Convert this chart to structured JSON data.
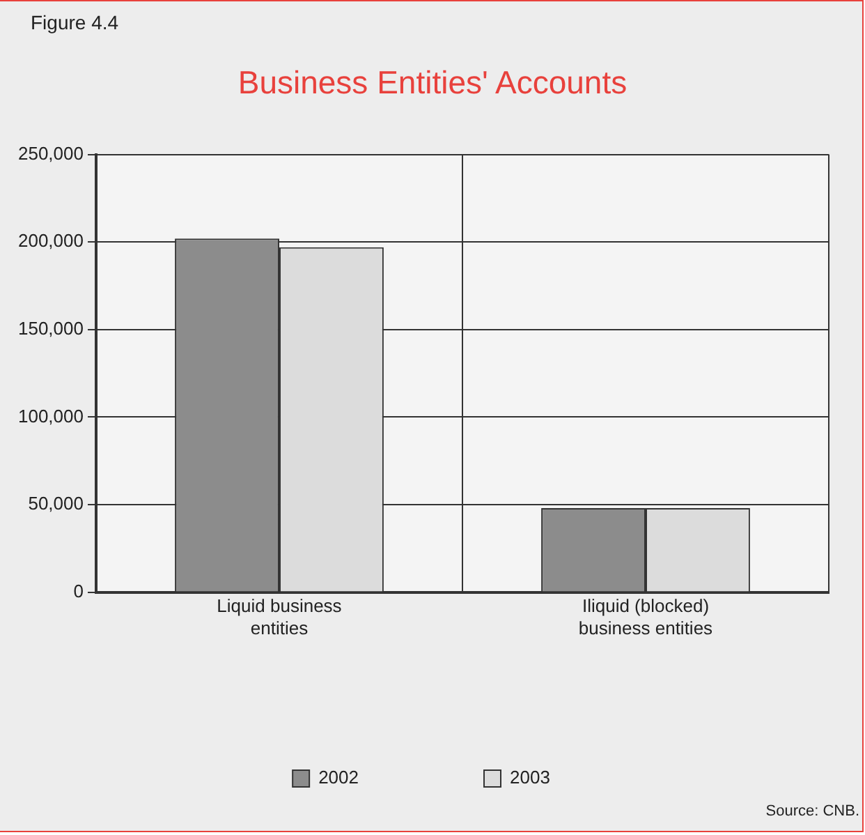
{
  "chart_data": {
    "type": "bar",
    "title": "Business Entities' Accounts",
    "annotations": [
      "Figure 4.4",
      "Source: CNB."
    ],
    "categories": [
      "Liquid business entities",
      "Iliquid (blocked) business entities"
    ],
    "series": [
      {
        "name": "2002",
        "color": "#8c8c8c",
        "values": [
          202000,
          48000
        ]
      },
      {
        "name": "2003",
        "color": "#dcdcdc",
        "values": [
          197000,
          48000
        ]
      }
    ],
    "ylim": [
      0,
      250000
    ],
    "yticks": [
      0,
      {
        "value": 50000,
        "label": "50,000"
      },
      {
        "value": 100000,
        "label": "100,000"
      },
      {
        "value": 150000,
        "label": "150,000"
      },
      {
        "value": 200000,
        "label": "200,000"
      },
      {
        "value": 250000,
        "label": "250,000"
      }
    ],
    "grid": true,
    "legend": "bottom"
  }
}
